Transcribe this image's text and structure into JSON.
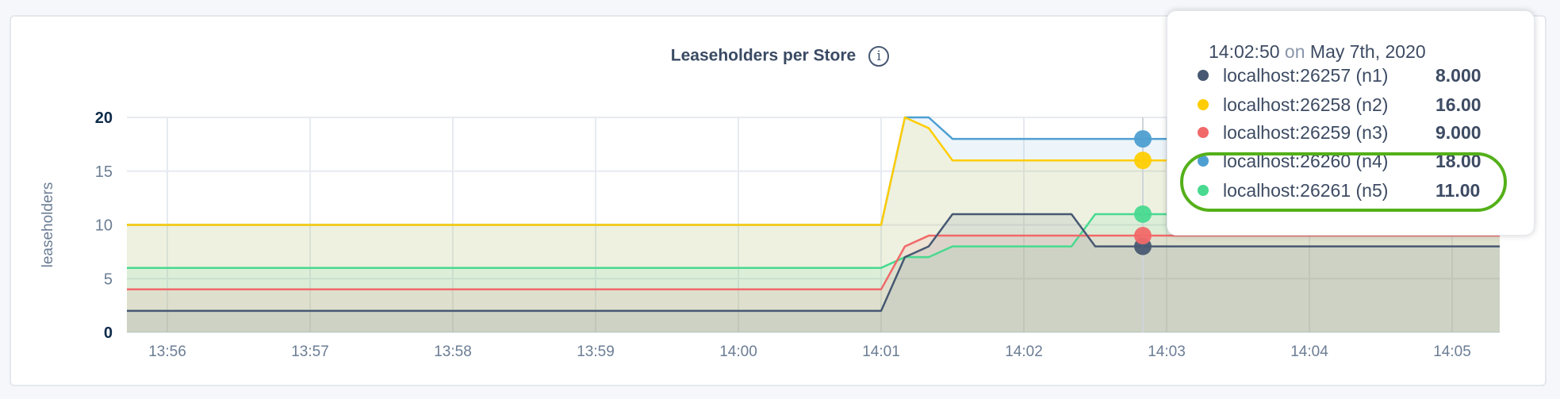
{
  "chart_data": {
    "type": "line",
    "title": "Leaseholders per Store",
    "ylabel": "leaseholders",
    "xlabel": "",
    "ylim": [
      0,
      20
    ],
    "xlim": [
      "13:55:43",
      "14:05:20"
    ],
    "yticks": [
      "0",
      "5",
      "10",
      "15",
      "20"
    ],
    "xticks": [
      "13:56",
      "13:57",
      "13:58",
      "13:59",
      "14:00",
      "14:01",
      "14:02",
      "14:03",
      "14:04",
      "14:05"
    ],
    "grid": true,
    "area_fill": true,
    "series": [
      {
        "name": "localhost:26257 (n1)",
        "color": "#475872",
        "points": [
          [
            "13:55:43",
            2
          ],
          [
            "14:01:00",
            2
          ],
          [
            "14:01:10",
            7
          ],
          [
            "14:01:20",
            8
          ],
          [
            "14:01:30",
            11
          ],
          [
            "14:02:20",
            11
          ],
          [
            "14:02:30",
            8
          ],
          [
            "14:05:20",
            8
          ]
        ]
      },
      {
        "name": "localhost:26258 (n2)",
        "color": "#ffcd02",
        "points": [
          [
            "13:55:43",
            10
          ],
          [
            "14:01:00",
            10
          ],
          [
            "14:01:10",
            20
          ],
          [
            "14:01:20",
            19
          ],
          [
            "14:01:30",
            16
          ],
          [
            "14:05:20",
            16
          ]
        ]
      },
      {
        "name": "localhost:26259 (n3)",
        "color": "#f16969",
        "points": [
          [
            "13:55:43",
            4
          ],
          [
            "14:01:00",
            4
          ],
          [
            "14:01:10",
            8
          ],
          [
            "14:01:20",
            9
          ],
          [
            "14:05:20",
            9
          ]
        ]
      },
      {
        "name": "localhost:26260 (n4)",
        "color": "#4e9fd1",
        "points": [
          [
            "13:55:43",
            10
          ],
          [
            "14:01:00",
            10
          ],
          [
            "14:01:10",
            20
          ],
          [
            "14:01:20",
            20
          ],
          [
            "14:01:30",
            18
          ],
          [
            "14:05:20",
            18
          ]
        ]
      },
      {
        "name": "localhost:26261 (n5)",
        "color": "#49d990",
        "points": [
          [
            "13:55:43",
            6
          ],
          [
            "14:01:00",
            6
          ],
          [
            "14:01:10",
            7
          ],
          [
            "14:01:20",
            7
          ],
          [
            "14:01:30",
            8
          ],
          [
            "14:02:20",
            8
          ],
          [
            "14:02:30",
            11
          ],
          [
            "14:05:20",
            11
          ]
        ]
      }
    ],
    "hover_time": "14:02:50"
  },
  "tooltip": {
    "time": "14:02:50",
    "on": "on",
    "date": "May 7th, 2020",
    "rows": [
      {
        "label": "localhost:26257 (n1)",
        "value": "8.000",
        "color": "#475872"
      },
      {
        "label": "localhost:26258 (n2)",
        "value": "16.00",
        "color": "#ffcd02"
      },
      {
        "label": "localhost:26259 (n3)",
        "value": "9.000",
        "color": "#f16969"
      },
      {
        "label": "localhost:26260 (n4)",
        "value": "18.00",
        "color": "#4e9fd1"
      },
      {
        "label": "localhost:26261 (n5)",
        "value": "11.00",
        "color": "#49d990"
      }
    ],
    "highlight_color": "#54b019"
  },
  "info_icon": "info-icon"
}
